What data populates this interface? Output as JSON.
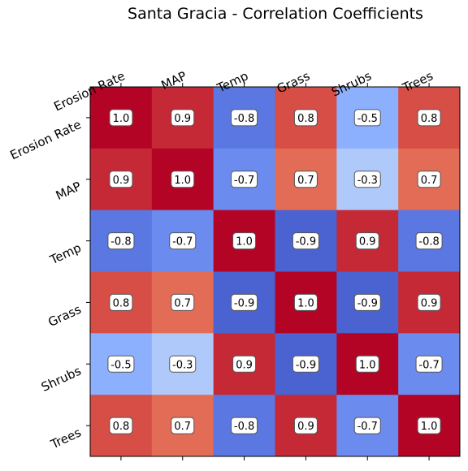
{
  "chart_data": {
    "type": "heatmap",
    "title": "Santa Gracia - Correlation Coefficients",
    "x_categories": [
      "Erosion Rate",
      "MAP",
      "Temp",
      "Grass",
      "Shrubs",
      "Trees"
    ],
    "y_categories": [
      "Erosion Rate",
      "MAP",
      "Temp",
      "Grass",
      "Shrubs",
      "Trees"
    ],
    "values": [
      [
        1.0,
        0.9,
        -0.8,
        0.8,
        -0.5,
        0.8
      ],
      [
        0.9,
        1.0,
        -0.7,
        0.7,
        -0.3,
        0.7
      ],
      [
        -0.8,
        -0.7,
        1.0,
        -0.9,
        0.9,
        -0.8
      ],
      [
        0.8,
        0.7,
        -0.9,
        1.0,
        -0.9,
        0.9
      ],
      [
        -0.5,
        -0.3,
        0.9,
        -0.9,
        1.0,
        -0.7
      ],
      [
        0.8,
        0.7,
        -0.8,
        0.9,
        -0.7,
        1.0
      ]
    ],
    "value_format": "0.0",
    "colormap": "coolwarm",
    "value_range": [
      -1,
      1
    ],
    "x_tick_position": "top",
    "grid": false,
    "legend": "none"
  }
}
